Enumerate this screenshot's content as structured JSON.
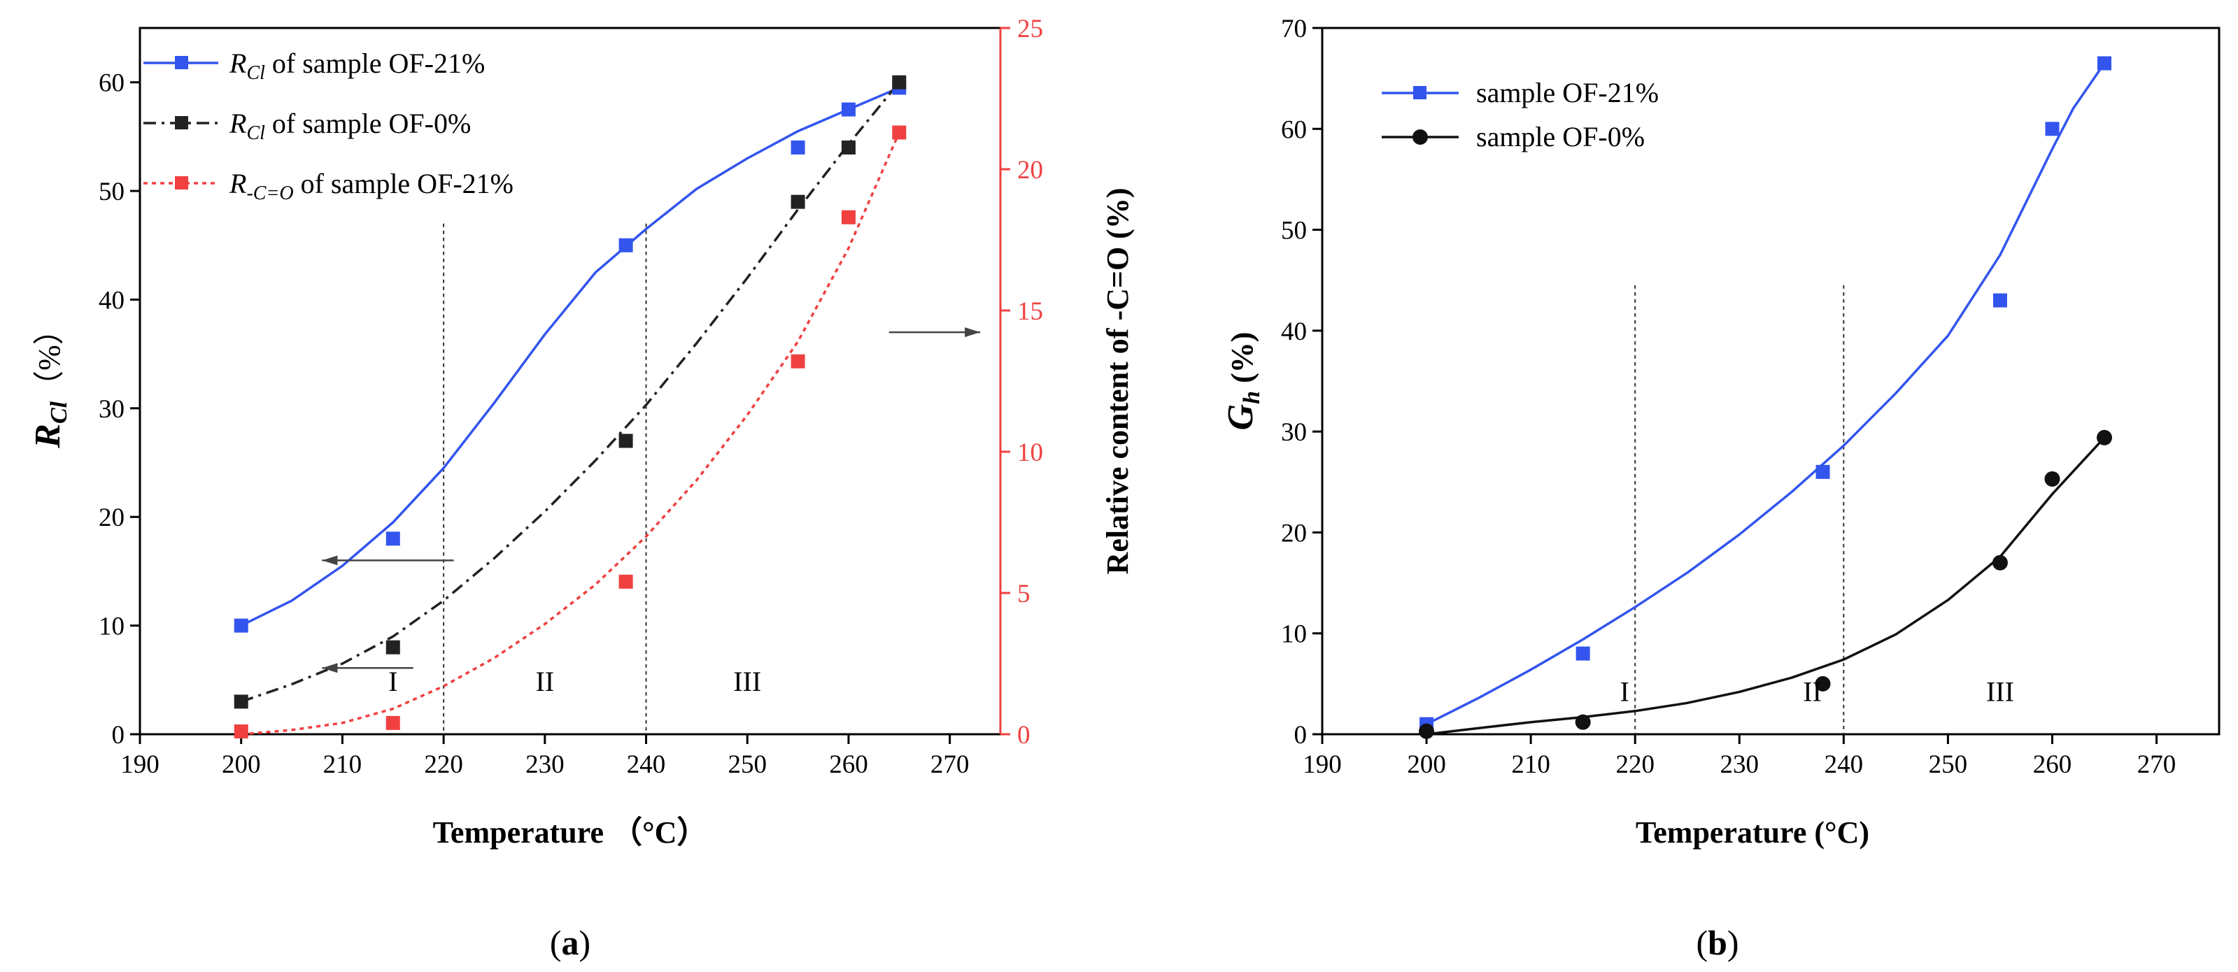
{
  "chart_data": [
    {
      "type": "scatter",
      "panel_label": "a",
      "xlabel": "Temperature （°C）",
      "ylabel_left_main": "R",
      "ylabel_left_sub": "Cl",
      "ylabel_left_unit": "（%）",
      "ylabel_right": "Relative content of -C=O (%)",
      "xlim": [
        190,
        275
      ],
      "ylim_left": [
        0,
        65
      ],
      "ylim_right": [
        0,
        25
      ],
      "x_ticks": [
        190,
        200,
        210,
        220,
        230,
        240,
        250,
        260,
        270
      ],
      "y_left_ticks": [
        0,
        10,
        20,
        30,
        40,
        50,
        60
      ],
      "y_right_ticks": [
        0,
        5,
        10,
        15,
        20,
        25
      ],
      "region_lines": [
        220,
        240
      ],
      "regions": [
        {
          "label": "I",
          "x": 215,
          "y": 4
        },
        {
          "label": "II",
          "x": 230,
          "y": 4
        },
        {
          "label": "III",
          "x": 250,
          "y": 4
        }
      ],
      "series": [
        {
          "name_main": "R",
          "name_sub": "Cl",
          "name_rest": " of sample OF-21%",
          "axis": "left",
          "color": "#3355ee",
          "style": "solid",
          "marker": "square",
          "x": [
            200,
            215,
            238,
            255,
            260,
            265
          ],
          "y": [
            10,
            18,
            45,
            54,
            57.5,
            59.5
          ],
          "fit_x": [
            200,
            205,
            210,
            215,
            220,
            225,
            230,
            235,
            240,
            245,
            250,
            255,
            260,
            265
          ],
          "fit_y": [
            10,
            12.3,
            15.5,
            19.5,
            24.5,
            30.5,
            36.8,
            42.5,
            46.5,
            50.2,
            53,
            55.5,
            57.5,
            59.5
          ]
        },
        {
          "name_main": "R",
          "name_sub": "Cl",
          "name_rest": " of sample OF-0%",
          "axis": "left",
          "color": "#222222",
          "style": "dashdot",
          "marker": "square",
          "x": [
            200,
            215,
            238,
            255,
            260,
            265
          ],
          "y": [
            3,
            8,
            27,
            49,
            54,
            60
          ],
          "fit_x": [
            200,
            205,
            210,
            215,
            220,
            225,
            230,
            235,
            240,
            245,
            250,
            255,
            260,
            265
          ],
          "fit_y": [
            3,
            4.6,
            6.5,
            9,
            12.3,
            16.2,
            20.5,
            25.2,
            30.3,
            36,
            42,
            48.3,
            54.3,
            60
          ]
        },
        {
          "name_main": "R",
          "name_sub": "-C=O",
          "name_rest": " of sample OF-21%",
          "axis": "right",
          "color": "#f04040",
          "style": "dotted",
          "marker": "square",
          "x": [
            200,
            215,
            238,
            255,
            260,
            265
          ],
          "y": [
            0.1,
            0.4,
            5.4,
            13.2,
            18.3,
            21.3
          ],
          "fit_x": [
            200,
            205,
            210,
            215,
            220,
            225,
            230,
            235,
            240,
            245,
            250,
            255,
            260,
            265
          ],
          "fit_y": [
            0,
            0.15,
            0.4,
            0.9,
            1.7,
            2.7,
            3.9,
            5.3,
            7,
            9,
            11.3,
            13.9,
            17.2,
            21.3
          ]
        }
      ],
      "arrows": [
        {
          "dir": "left",
          "axis": "left",
          "x_from": 221,
          "x_to": 208,
          "y": 16
        },
        {
          "dir": "left",
          "axis": "left",
          "x_from": 217,
          "x_to": 208,
          "y": 6.1
        },
        {
          "dir": "right",
          "axis": "left",
          "x_from": 264,
          "x_to": 273,
          "y": 37
        }
      ]
    },
    {
      "type": "scatter",
      "panel_label": "b",
      "xlabel": "Temperature (°C)",
      "ylabel_main": "G",
      "ylabel_sub": "h",
      "ylabel_unit": " (%)",
      "xlim": [
        190,
        276
      ],
      "ylim": [
        0,
        70
      ],
      "x_ticks": [
        190,
        200,
        210,
        220,
        230,
        240,
        250,
        260,
        270
      ],
      "y_ticks": [
        0,
        10,
        20,
        30,
        40,
        50,
        60,
        70
      ],
      "region_lines": [
        220,
        240
      ],
      "regions": [
        {
          "label": "I",
          "x": 219,
          "y": 3.3
        },
        {
          "label": "II",
          "x": 237,
          "y": 3.3
        },
        {
          "label": "III",
          "x": 255,
          "y": 3.3
        }
      ],
      "series": [
        {
          "name": "sample OF-21%",
          "color": "#3355ee",
          "marker": "square",
          "x": [
            200,
            215,
            238,
            255,
            260,
            265
          ],
          "y": [
            1,
            8,
            26,
            43,
            60,
            66.5
          ],
          "fit_x": [
            200,
            205,
            210,
            215,
            220,
            225,
            230,
            235,
            240,
            245,
            250,
            255,
            258,
            260,
            262,
            265
          ],
          "fit_y": [
            1,
            3.6,
            6.4,
            9.4,
            12.6,
            16,
            19.8,
            24,
            28.6,
            33.8,
            39.5,
            47.5,
            53.8,
            58,
            62,
            66.5
          ]
        },
        {
          "name": "sample OF-0%",
          "color": "#111111",
          "marker": "circle",
          "x": [
            200,
            215,
            238,
            255,
            260,
            265
          ],
          "y": [
            0.3,
            1.2,
            5,
            17,
            25.3,
            29.4
          ],
          "fit_x": [
            200,
            205,
            210,
            215,
            220,
            225,
            230,
            235,
            240,
            245,
            250,
            255,
            260,
            265
          ],
          "fit_y": [
            0,
            0.6,
            1.2,
            1.7,
            2.3,
            3.1,
            4.2,
            5.6,
            7.4,
            9.9,
            13.3,
            17.6,
            23.8,
            29.4
          ]
        }
      ]
    }
  ]
}
